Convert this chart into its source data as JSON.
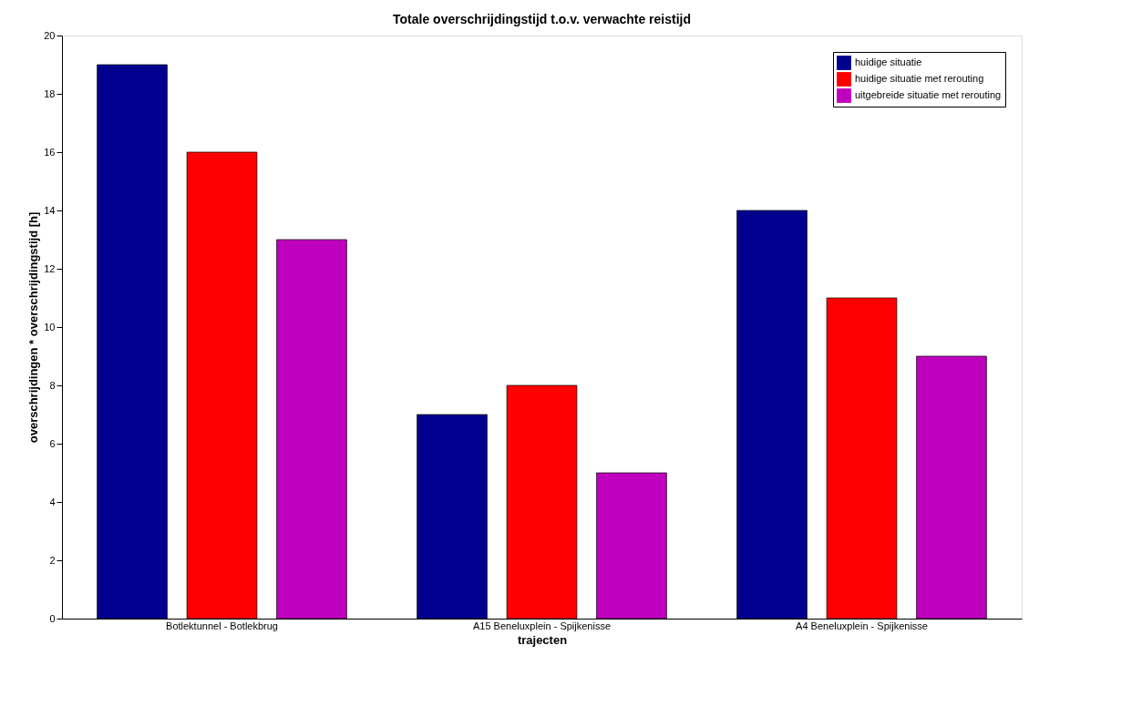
{
  "chart_data": {
    "type": "bar",
    "title": "Totale overschrijdingstijd t.o.v. verwachte reistijd",
    "xlabel": "trajecten",
    "ylabel": "overschrijdingen * overschrijdingstijd [h]",
    "categories": [
      "Botlektunnel - Botlekbrug",
      "A15 Beneluxplein - Spijkenisse",
      "A4 Beneluxplein - Spijkenisse"
    ],
    "series": [
      {
        "name": "huidige situatie",
        "color": "#00008f",
        "values": [
          19,
          7,
          14
        ]
      },
      {
        "name": "huidige situatie met rerouting",
        "color": "#ff0000",
        "values": [
          16,
          8,
          11
        ]
      },
      {
        "name": "uitgebreide situatie met rerouting",
        "color": "#bf00bf",
        "values": [
          13,
          5,
          9
        ]
      }
    ],
    "ylim": [
      0,
      20
    ],
    "yticks": [
      0,
      2,
      4,
      6,
      8,
      10,
      12,
      14,
      16,
      18,
      20
    ],
    "grid": false,
    "legend": "top right"
  }
}
